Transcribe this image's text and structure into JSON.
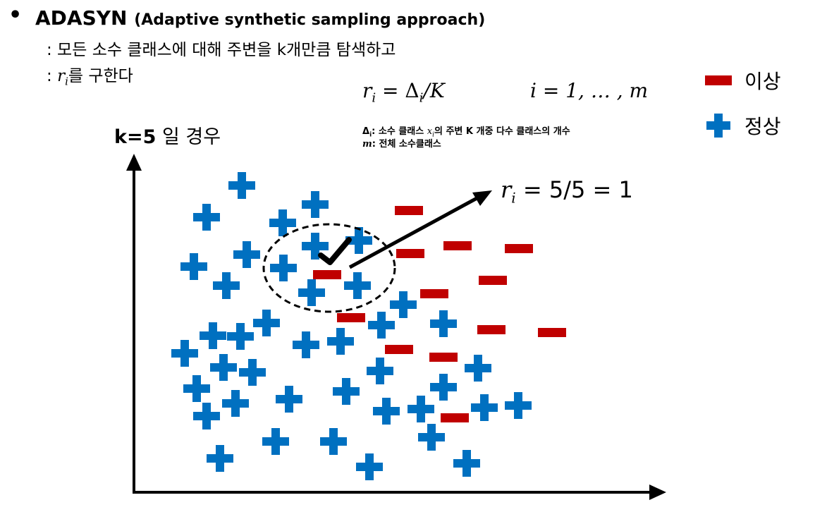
{
  "header": {
    "bullet": "•",
    "title": "ADASYN",
    "title_sub": "(Adaptive synthetic sampling approach)",
    "line1": ": 모든 소수 클래스에 대해 주변을 k개만큼 탐색하고",
    "line2_prefix": ": ",
    "line2_var": "r",
    "line2_sub": "i",
    "line2_suffix": "를 구한다"
  },
  "formula": {
    "left": "r",
    "left_sub": "i",
    "eq": " =  Δ",
    "delta_sub": "i",
    "div": "/K",
    "range": "i = 1, … , m"
  },
  "notes": {
    "n1_var": "Δ",
    "n1_sub": "i",
    "n1_a": ": 소수 클래스 ",
    "n1_x": "x",
    "n1_xsub": "i",
    "n1_b": "의 주변 K 개중 다수 클래스의 개수",
    "n2_var": "m",
    "n2_text": ": 전체 소수클래스"
  },
  "legend": {
    "minority_label": "이상",
    "majority_label": "정상",
    "minority_color": "#c00000",
    "majority_color": "#0070c0"
  },
  "k_case": {
    "k": "k=5",
    "text": " 일 경우"
  },
  "ri_result": {
    "var": "r",
    "sub": "i",
    "text": " = 5/5 = 1"
  },
  "icons": {
    "check": "check-mark-icon",
    "plus": "plus-icon",
    "minus": "minus-icon"
  }
}
